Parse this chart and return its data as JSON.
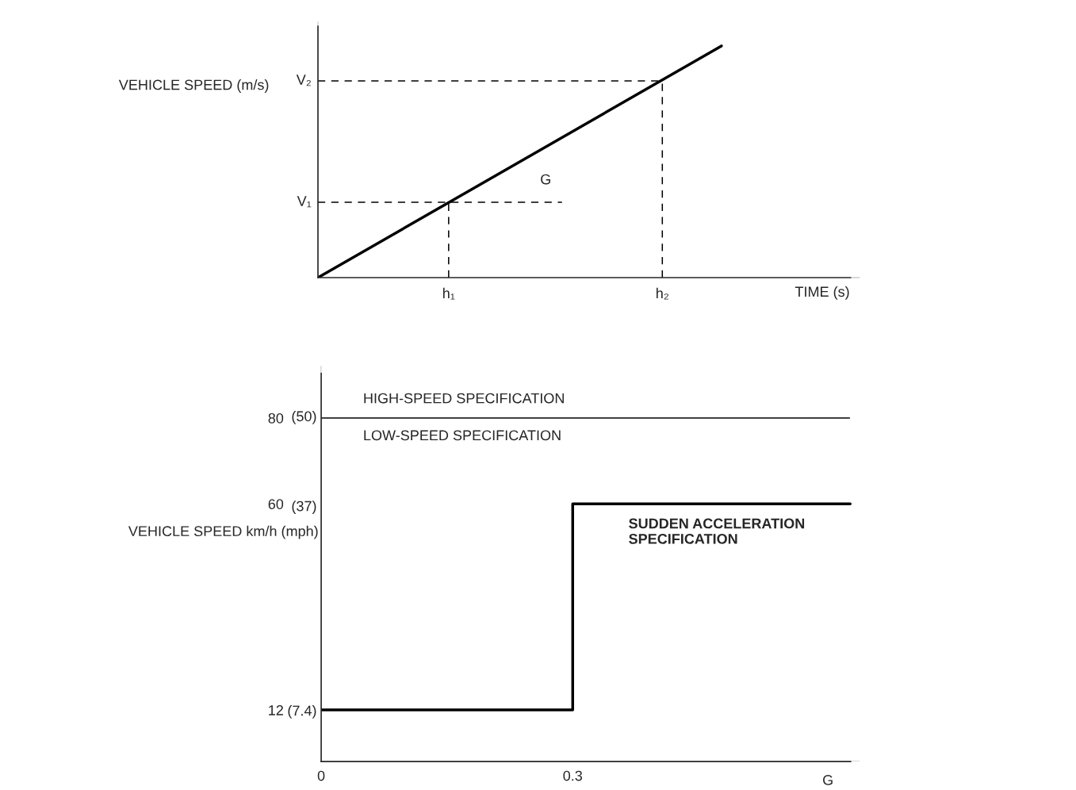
{
  "chart_data": [
    {
      "type": "other",
      "xlabel": "TIME (s)",
      "ylabel": "VEHICLE SPEED (m/s)",
      "annotations": [
        "V₂",
        "V₁",
        "h₁",
        "h₂",
        "G"
      ]
    },
    {
      "type": "step",
      "xlabel": "G",
      "ylabel": "VEHICLE SPEED km/h (mph)",
      "color": "#000000",
      "line_style": "solid",
      "marker": "none",
      "grid": false,
      "legend": false,
      "x": [
        0,
        0.3,
        0.631
      ],
      "values": [
        12,
        60,
        60
      ],
      "xlim": [
        0,
        0.643
      ],
      "ylim": [
        0,
        92
      ],
      "xticks": [
        0,
        0.3
      ],
      "yticks": [
        12,
        60,
        80
      ],
      "y2lim": [
        0,
        57.17
      ],
      "y2ticks": [
        {
          "value": 7.4,
          "label": "(7.4)"
        },
        {
          "value": 37,
          "label": "(37)"
        },
        {
          "value": 50,
          "label": "(50)"
        }
      ],
      "ref_lines": [
        {
          "axis": "y",
          "value": 80,
          "label": "HIGH-SPEED SPECIFICATION",
          "line_style": "solid"
        }
      ],
      "annotations": [
        "LOW-SPEED SPECIFICATION",
        "SUDDEN ACCELERATION\nSPECIFICATION"
      ]
    }
  ]
}
